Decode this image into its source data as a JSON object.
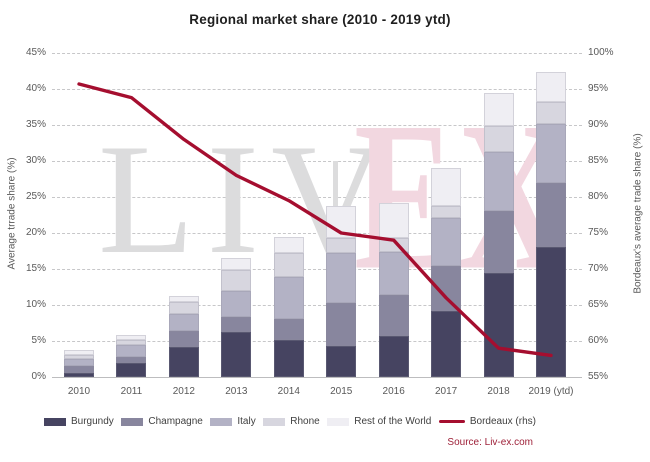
{
  "title": "Regional market share (2010 - 2019 ytd)",
  "source": "Source: Liv-ex.com",
  "watermark": {
    "gray_text": "LIV",
    "pink_text": "EX"
  },
  "colors": {
    "burgundy_bar": "#464461",
    "champagne_bar": "#88869e",
    "italy_bar": "#b3b2c5",
    "rhone_bar": "#d7d6df",
    "rest_of_world_bar": "#efeef3",
    "bordeaux_line": "#a50e2f",
    "gridline": "#c7c7c9",
    "tick_text": "#595959"
  },
  "chart_data": {
    "type": "bar",
    "subtype": "stacked-bars-with-line",
    "title": "Regional market share (2010 - 2019 ytd)",
    "grid": true,
    "legend_position": "bottom",
    "categories": [
      "2010",
      "2011",
      "2012",
      "2013",
      "2014",
      "2015",
      "2016",
      "2017",
      "2018",
      "2019 (ytd)"
    ],
    "left_axis": {
      "label": "Average trrade share (%)",
      "min": 0,
      "max": 45,
      "step": 5,
      "ticks": [
        "0%",
        "5%",
        "10%",
        "15%",
        "20%",
        "25%",
        "30%",
        "35%",
        "40%",
        "45%"
      ]
    },
    "right_axis": {
      "label": "Bordeaux's average trade share (%)",
      "min": 55,
      "max": 100,
      "step": 5,
      "ticks": [
        "55%",
        "60%",
        "65%",
        "70%",
        "75%",
        "80%",
        "85%",
        "90%",
        "95%",
        "100%"
      ]
    },
    "series": [
      {
        "name": "Burgundy",
        "type": "bar",
        "axis": "left",
        "color": "#464461",
        "values": [
          0.5,
          2.0,
          4.1,
          6.2,
          5.1,
          4.3,
          5.7,
          9.2,
          14.4,
          18.0
        ]
      },
      {
        "name": "Champagne",
        "type": "bar",
        "axis": "left",
        "color": "#88869e",
        "values": [
          1.1,
          0.8,
          2.3,
          2.1,
          3.0,
          6.0,
          5.7,
          6.2,
          8.7,
          9.0
        ]
      },
      {
        "name": "Italy",
        "type": "bar",
        "axis": "left",
        "color": "#b3b2c5",
        "values": [
          0.9,
          1.6,
          2.4,
          3.7,
          5.8,
          6.9,
          6.0,
          6.7,
          8.1,
          8.2
        ]
      },
      {
        "name": "Rhone",
        "type": "bar",
        "axis": "left",
        "color": "#d7d6df",
        "values": [
          0.6,
          0.8,
          1.6,
          2.8,
          3.3,
          2.1,
          1.9,
          1.7,
          3.6,
          3.0
        ]
      },
      {
        "name": "Rest of the World",
        "type": "bar",
        "axis": "left",
        "color": "#efeef3",
        "values": [
          0.6,
          0.6,
          0.8,
          1.8,
          2.3,
          4.4,
          4.9,
          5.2,
          4.6,
          4.2
        ]
      },
      {
        "name": "Bordeaux (rhs)",
        "type": "line",
        "axis": "right",
        "color": "#a50e2f",
        "values": [
          95.7,
          93.8,
          88,
          83,
          79.5,
          75,
          74,
          66,
          59,
          58
        ]
      }
    ]
  }
}
